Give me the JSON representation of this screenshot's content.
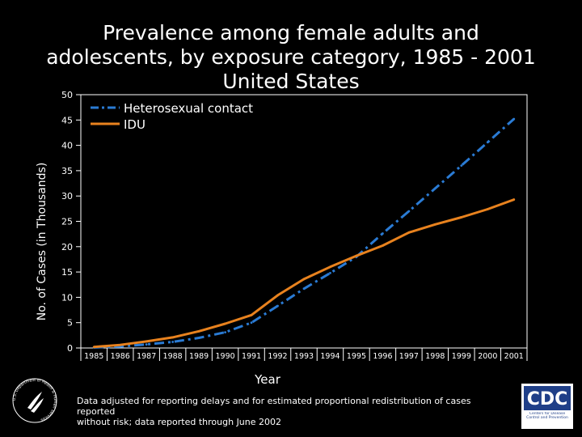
{
  "title": {
    "line1": "Prevalence among female adults and",
    "line2": "adolescents, by exposure category, 1985 - 2001",
    "line3": "United States"
  },
  "footnote": {
    "line1": "Data adjusted for reporting delays and for estimated proportional redistribution of cases reported",
    "line2": "without risk; data reported through June 2002"
  },
  "logos": {
    "hhs": "U.S. Department of Health & Human Services",
    "cdc": "CDC",
    "cdc_sub": "Centers for Disease Control and Prevention"
  },
  "colors": {
    "hetero": "#2a7bd4",
    "idu": "#e8821e",
    "background": "#000000",
    "text": "#ffffff",
    "cdc_blue": "#1f3f88"
  },
  "chart_data": {
    "type": "line",
    "xlabel": "Year",
    "ylabel": "No. of Cases (in Thousands)",
    "ylim": [
      0,
      50
    ],
    "yticks": [
      0,
      5,
      10,
      15,
      20,
      25,
      30,
      35,
      40,
      45,
      50
    ],
    "x": [
      "1985",
      "1986",
      "1987",
      "1988",
      "1989",
      "1990",
      "1991",
      "1992",
      "1993",
      "1994",
      "1995",
      "1996",
      "1997",
      "1998",
      "1999",
      "2000",
      "2001"
    ],
    "series": [
      {
        "name": "Heterosexual contact",
        "style": "dash-dot",
        "values": [
          0.1,
          0.3,
          0.7,
          1.2,
          2.0,
          3.1,
          5.0,
          8.3,
          11.7,
          14.8,
          18.0,
          22.6,
          27.0,
          31.5,
          36.0,
          40.6,
          45.2
        ]
      },
      {
        "name": "IDU",
        "style": "solid",
        "values": [
          0.2,
          0.6,
          1.3,
          2.1,
          3.3,
          4.8,
          6.5,
          10.4,
          13.6,
          16.0,
          18.2,
          20.2,
          22.8,
          24.4,
          25.8,
          27.4,
          29.3
        ]
      }
    ]
  }
}
